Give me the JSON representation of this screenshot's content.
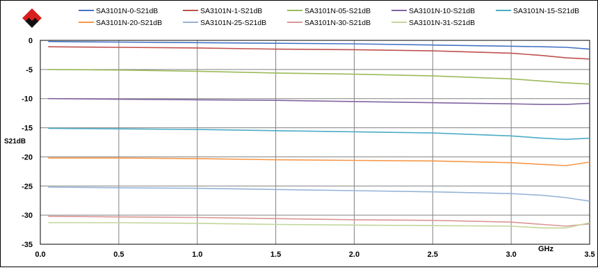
{
  "chart_data": {
    "type": "line",
    "title": "",
    "xlabel": "GHz",
    "ylabel": "S21dB",
    "xlim": [
      0,
      3.5
    ],
    "ylim": [
      -35,
      0
    ],
    "x_ticks": [
      "0.0",
      "0.5",
      "1.0",
      "1.5",
      "2.0",
      "2.5",
      "3.0",
      "3.5"
    ],
    "y_ticks": [
      "0",
      "-5",
      "-10",
      "-15",
      "-20",
      "-25",
      "-30",
      "-35"
    ],
    "grid": true,
    "legend_position": "top",
    "x": [
      0.05,
      0.5,
      1.0,
      1.5,
      2.0,
      2.5,
      3.0,
      3.2,
      3.35,
      3.5
    ],
    "series": [
      {
        "name": "SA3101N-0-S21dB",
        "color": "#4472C4",
        "values": [
          -0.2,
          -0.3,
          -0.4,
          -0.5,
          -0.6,
          -0.8,
          -1.0,
          -1.1,
          -1.2,
          -1.5
        ]
      },
      {
        "name": "SA3101N-1-S21dB",
        "color": "#C0504D",
        "values": [
          -1.1,
          -1.2,
          -1.3,
          -1.5,
          -1.6,
          -1.8,
          -2.2,
          -2.6,
          -3.0,
          -3.2
        ]
      },
      {
        "name": "SA3101N-05-S21dB",
        "color": "#9BBB59",
        "values": [
          -5.0,
          -5.1,
          -5.3,
          -5.6,
          -5.8,
          -6.1,
          -6.6,
          -7.0,
          -7.3,
          -7.5
        ]
      },
      {
        "name": "SA3101N-10-S21dB",
        "color": "#8064A2",
        "values": [
          -10.0,
          -10.1,
          -10.2,
          -10.3,
          -10.5,
          -10.7,
          -10.9,
          -11.0,
          -11.0,
          -10.8
        ]
      },
      {
        "name": "SA3101N-15-S21dB",
        "color": "#4BACC6",
        "values": [
          -15.1,
          -15.2,
          -15.3,
          -15.5,
          -15.7,
          -15.9,
          -16.4,
          -16.8,
          -17.0,
          -16.8
        ]
      },
      {
        "name": "SA3101N-20-S21dB",
        "color": "#F79646",
        "values": [
          -20.2,
          -20.2,
          -20.3,
          -20.5,
          -20.6,
          -20.7,
          -21.0,
          -21.3,
          -21.5,
          -20.9
        ]
      },
      {
        "name": "SA3101N-25-S21dB",
        "color": "#95B3D7",
        "values": [
          -25.2,
          -25.3,
          -25.4,
          -25.6,
          -25.8,
          -26.0,
          -26.3,
          -26.6,
          -27.0,
          -27.6
        ]
      },
      {
        "name": "SA3101N-30-S21dB",
        "color": "#D99694",
        "values": [
          -30.2,
          -30.3,
          -30.4,
          -30.6,
          -30.8,
          -30.9,
          -31.2,
          -31.6,
          -31.9,
          -31.5
        ]
      },
      {
        "name": "SA3101N-31-S21dB",
        "color": "#C3D69B",
        "values": [
          -31.3,
          -31.3,
          -31.4,
          -31.6,
          -31.7,
          -31.8,
          -31.9,
          -32.2,
          -32.2,
          -31.3
        ]
      }
    ]
  },
  "logo": {
    "icon": "red-black-diamond-logo-icon"
  }
}
